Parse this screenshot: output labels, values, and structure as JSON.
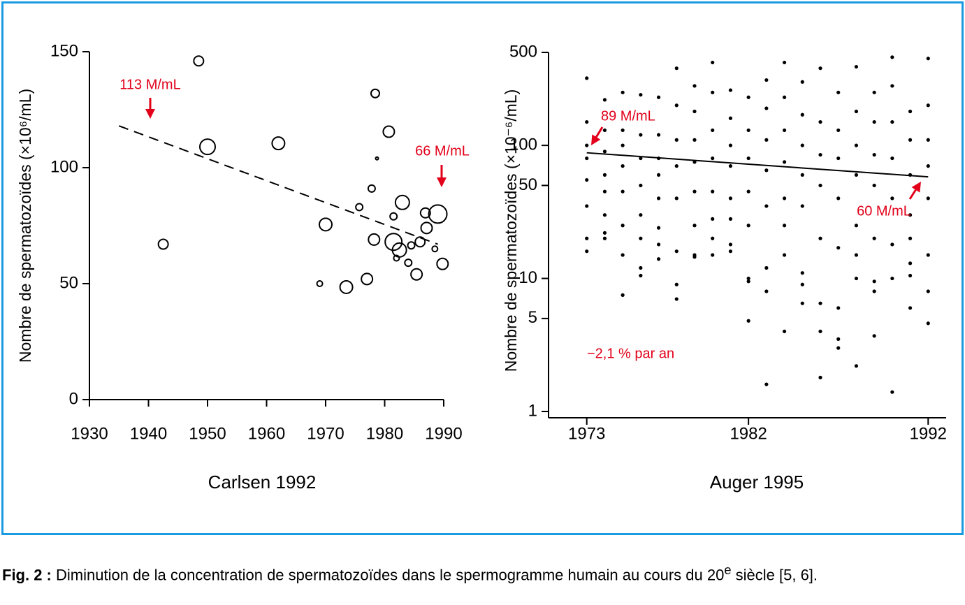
{
  "chart_data": [
    {
      "type": "scatter",
      "ylabel": "Nombre de spermatozoïdes (×10⁶/mL)",
      "xlabel": "Carlsen 1992",
      "x": [
        1948.5,
        1942.5,
        1950,
        1962,
        1970,
        1969,
        1973.5,
        1977,
        1977.8,
        1975.7,
        1978.4,
        1978.7,
        1978.2,
        1980.7,
        1981.5,
        1981.5,
        1982.5,
        1982,
        1983,
        1984,
        1984.5,
        1985.4,
        1986,
        1986.9,
        1987.1,
        1988.5,
        1989,
        1989.8
      ],
      "values": [
        146,
        67,
        109,
        110.5,
        75.5,
        50,
        48.5,
        52,
        91,
        83,
        132,
        104,
        69,
        115.5,
        68,
        79,
        64.5,
        61,
        85,
        59,
        66.5,
        54,
        68,
        80.5,
        74,
        65,
        80,
        58.5
      ],
      "sizes": [
        7,
        7,
        11,
        9,
        9,
        4,
        9,
        8,
        5,
        5,
        6,
        2,
        8,
        8,
        12,
        5,
        10,
        4,
        10,
        5,
        5,
        8,
        7,
        7,
        8,
        4,
        13,
        8
      ],
      "xlim": [
        1930,
        1990
      ],
      "ylim": [
        0,
        150
      ],
      "xticks": [
        1930,
        1940,
        1950,
        1960,
        1970,
        1980,
        1990
      ],
      "yticks": [
        0,
        50,
        100,
        150
      ],
      "trend": {
        "x": [
          1935,
          1989
        ],
        "values": [
          118,
          67
        ],
        "style": "dashed"
      },
      "annotations": [
        "113 M/mL",
        "66 M/mL"
      ],
      "color": "#000000",
      "annotation_color": "#e2001a"
    },
    {
      "type": "scatter",
      "ylabel": "Nombre de spermatozoïdes (×10⁻⁶/mL)",
      "xlabel": "Auger 1995",
      "log_y": true,
      "x": [
        1973,
        1973,
        1973,
        1973,
        1973,
        1973,
        1973,
        1973,
        1974,
        1974,
        1974,
        1974,
        1974,
        1974,
        1974,
        1974,
        1975,
        1975,
        1975,
        1975,
        1975,
        1975,
        1975,
        1975,
        1976,
        1976,
        1976,
        1976,
        1976,
        1976,
        1976,
        1976,
        1977,
        1977,
        1977,
        1977,
        1977,
        1977,
        1977,
        1977,
        1978,
        1978,
        1978,
        1978,
        1978,
        1978,
        1978,
        1978,
        1979,
        1979,
        1979,
        1979,
        1979,
        1979,
        1979,
        1979,
        1980,
        1980,
        1980,
        1980,
        1980,
        1980,
        1980,
        1980,
        1981,
        1981,
        1981,
        1981,
        1981,
        1981,
        1981,
        1981,
        1982,
        1982,
        1982,
        1982,
        1982,
        1982,
        1982,
        1982,
        1983,
        1983,
        1983,
        1983,
        1983,
        1983,
        1983,
        1983,
        1984,
        1984,
        1984,
        1984,
        1984,
        1984,
        1984,
        1984,
        1985,
        1985,
        1985,
        1985,
        1985,
        1985,
        1985,
        1985,
        1986,
        1986,
        1986,
        1986,
        1986,
        1986,
        1986,
        1986,
        1987,
        1987,
        1987,
        1987,
        1987,
        1987,
        1987,
        1987,
        1988,
        1988,
        1988,
        1988,
        1988,
        1988,
        1988,
        1988,
        1989,
        1989,
        1989,
        1989,
        1989,
        1989,
        1989,
        1989,
        1990,
        1990,
        1990,
        1990,
        1990,
        1990,
        1990,
        1990,
        1991,
        1991,
        1991,
        1991,
        1991,
        1991,
        1991,
        1991,
        1992,
        1992,
        1992,
        1992,
        1992,
        1992,
        1992,
        1992
      ],
      "values": [
        320,
        150,
        100,
        80,
        55,
        35,
        20,
        16,
        220,
        130,
        90,
        60,
        45,
        30,
        22,
        20,
        250,
        130,
        100,
        70,
        45,
        25,
        15,
        7.5,
        240,
        120,
        80,
        50,
        30,
        20,
        12,
        10.5,
        230,
        120,
        80,
        60,
        40,
        24,
        18,
        14,
        380,
        200,
        110,
        70,
        40,
        16,
        9,
        7,
        280,
        180,
        110,
        75,
        45,
        25,
        15,
        14.5,
        420,
        250,
        130,
        80,
        45,
        28,
        20,
        15,
        260,
        160,
        100,
        70,
        40,
        28,
        18,
        16,
        230,
        130,
        80,
        45,
        25,
        10,
        9.5,
        4.8,
        310,
        190,
        110,
        65,
        35,
        12,
        8,
        1.6,
        420,
        230,
        130,
        75,
        40,
        25,
        15,
        4,
        300,
        170,
        100,
        60,
        35,
        11,
        9,
        6.5,
        380,
        150,
        85,
        50,
        20,
        6.5,
        4,
        1.8,
        250,
        130,
        80,
        40,
        17,
        6,
        3.5,
        3,
        390,
        180,
        100,
        60,
        25,
        15,
        10,
        2.2,
        250,
        150,
        85,
        50,
        20,
        9.5,
        8,
        3.7,
        460,
        280,
        150,
        80,
        40,
        18,
        10,
        1.4,
        180,
        110,
        60,
        30,
        20,
        10.5,
        6,
        13,
        450,
        200,
        110,
        70,
        40,
        15,
        8,
        4.6
      ],
      "xlim": [
        1972,
        1993
      ],
      "ylim": [
        1,
        500
      ],
      "xticks": [
        1973,
        1982,
        1992
      ],
      "yticks": [
        1,
        5,
        10,
        50,
        100,
        500
      ],
      "trend": {
        "x": [
          1973,
          1992
        ],
        "values": [
          88,
          58
        ],
        "style": "solid"
      },
      "annotations": [
        "89 M/mL",
        "60 M/mL",
        "−2,1 % par an"
      ],
      "color": "#000000",
      "annotation_color": "#e2001a"
    }
  ],
  "caption": {
    "label": "Fig. 2 :",
    "text": "Diminution de la concentration de spermatozoïdes dans le spermogramme humain au cours du 20",
    "sup": "e",
    "text_end": " siècle [5, 6]."
  }
}
